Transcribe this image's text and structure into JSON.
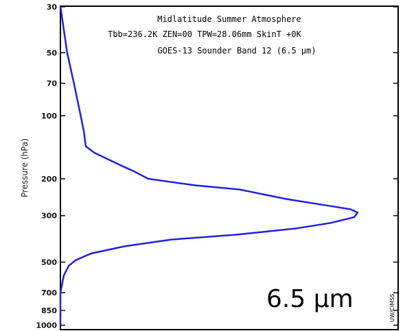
{
  "chart_data": {
    "type": "line",
    "title_lines": [
      "Midlatitude Summer Atmosphere",
      "Tbb=236.2K  ZEN=00  TPW=28.06mm  SkinT +0K",
      "GOES-13 Sounder  Band 12 (6.5 µm)"
    ],
    "ylabel": "Pressure (hPa)",
    "y_scale": "log",
    "ylim": [
      1050,
      30
    ],
    "y_ticks": [
      30,
      50,
      70,
      100,
      200,
      300,
      500,
      700,
      850,
      1000
    ],
    "x_ticks": 0,
    "series": [
      {
        "color": "#1f1fe0",
        "points": [
          {
            "x": 0.0,
            "y": 30
          },
          {
            "x": 0.02,
            "y": 50
          },
          {
            "x": 0.04,
            "y": 70
          },
          {
            "x": 0.06,
            "y": 100
          },
          {
            "x": 0.07,
            "y": 120
          },
          {
            "x": 0.075,
            "y": 140
          },
          {
            "x": 0.1,
            "y": 150
          },
          {
            "x": 0.17,
            "y": 170
          },
          {
            "x": 0.22,
            "y": 185
          },
          {
            "x": 0.26,
            "y": 200
          },
          {
            "x": 0.4,
            "y": 215
          },
          {
            "x": 0.53,
            "y": 225
          },
          {
            "x": 0.67,
            "y": 250
          },
          {
            "x": 0.8,
            "y": 270
          },
          {
            "x": 0.86,
            "y": 280
          },
          {
            "x": 0.88,
            "y": 290
          },
          {
            "x": 0.87,
            "y": 305
          },
          {
            "x": 0.8,
            "y": 325
          },
          {
            "x": 0.7,
            "y": 345
          },
          {
            "x": 0.52,
            "y": 370
          },
          {
            "x": 0.33,
            "y": 390
          },
          {
            "x": 0.19,
            "y": 420
          },
          {
            "x": 0.09,
            "y": 455
          },
          {
            "x": 0.045,
            "y": 490
          },
          {
            "x": 0.025,
            "y": 520
          },
          {
            "x": 0.01,
            "y": 580
          },
          {
            "x": 0.0,
            "y": 700
          },
          {
            "x": 0.0,
            "y": 1000
          }
        ]
      }
    ]
  },
  "annotations": {
    "band_label": "6.5 µm",
    "credit": "UW/CIMSS"
  }
}
